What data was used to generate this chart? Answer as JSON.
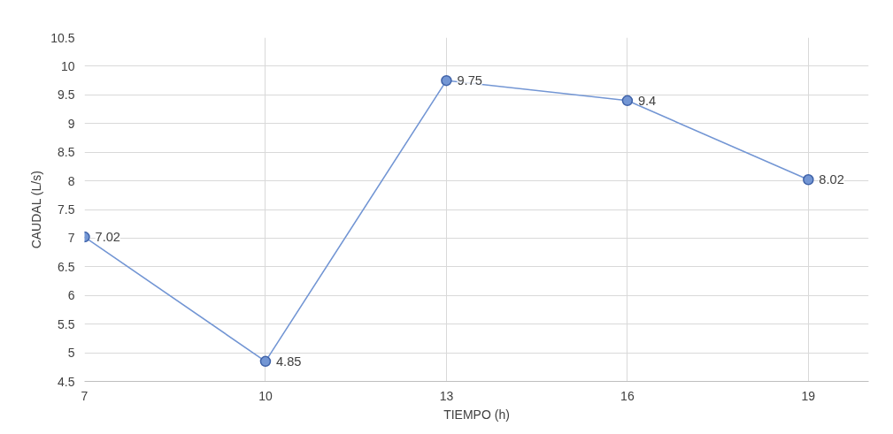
{
  "chart_data": {
    "type": "line",
    "xlabel": "TIEMPO (h)",
    "ylabel": "CAUDAL (L/s)",
    "x": [
      7,
      10,
      13,
      16,
      19
    ],
    "series": [
      {
        "color": "#7396d4",
        "values": [
          7.02,
          4.85,
          9.75,
          9.4,
          8.02
        ]
      }
    ],
    "xlim": [
      7,
      20
    ],
    "xticks": [
      7,
      10,
      13,
      16,
      19
    ],
    "ylim": [
      4.5,
      10.5
    ],
    "yticks": [
      4.5,
      5,
      5.5,
      6,
      6.5,
      7,
      7.5,
      8,
      8.5,
      9,
      9.5,
      10,
      10.5
    ],
    "grid": true,
    "marker": "circle",
    "data_labels": true
  }
}
